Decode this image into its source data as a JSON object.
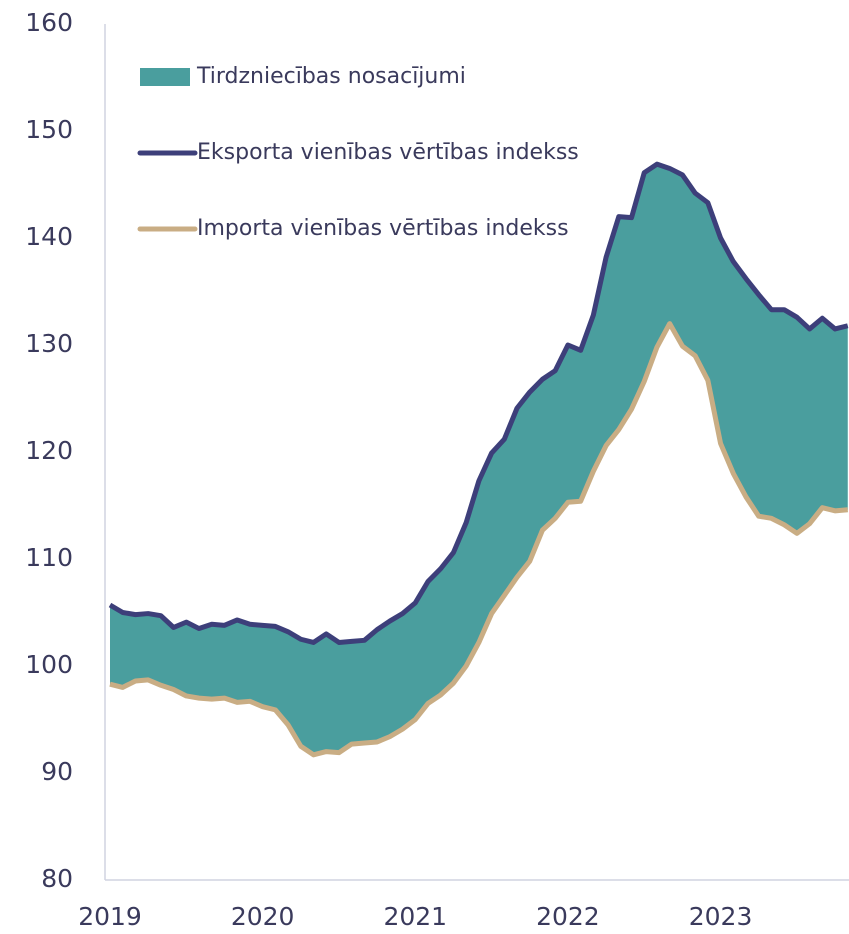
{
  "chart_data": {
    "type": "area-band",
    "categories": [
      "2019",
      null,
      null,
      null,
      null,
      null,
      null,
      null,
      null,
      null,
      null,
      null,
      "2020",
      null,
      null,
      null,
      null,
      null,
      null,
      null,
      null,
      null,
      null,
      null,
      "2021",
      null,
      null,
      null,
      null,
      null,
      null,
      null,
      null,
      null,
      null,
      null,
      "2022",
      null,
      null,
      null,
      null,
      null,
      null,
      null,
      null,
      null,
      null,
      null,
      "2023",
      null,
      null,
      null,
      null,
      null,
      null,
      null,
      null,
      null,
      null
    ],
    "area": {
      "name": "Tirdzniecības nosacījumi",
      "color": "#4a9e9e"
    },
    "series": [
      {
        "name": "Eksporta vienības vērtības indekss",
        "color": "#3d3f7a",
        "values": [
          105.7,
          105.0,
          104.8,
          104.9,
          104.7,
          103.6,
          104.1,
          103.5,
          103.9,
          103.8,
          104.3,
          103.9,
          103.8,
          103.7,
          103.2,
          102.5,
          102.2,
          103.0,
          102.2,
          102.3,
          102.4,
          103.4,
          104.2,
          104.9,
          105.9,
          107.9,
          109.1,
          110.6,
          113.4,
          117.3,
          119.9,
          121.2,
          124.1,
          125.6,
          126.8,
          127.6,
          130.0,
          129.5,
          132.8,
          138.2,
          142.0,
          141.9,
          146.1,
          146.9,
          146.5,
          145.9,
          144.2,
          143.3,
          140.0,
          137.8,
          136.2,
          134.7,
          133.3,
          133.3,
          132.6,
          131.5,
          132.5,
          131.5,
          131.8
        ]
      },
      {
        "name": "Importa vienības vērtības indekss",
        "color": "#c9ad84",
        "values": [
          98.3,
          98.0,
          98.6,
          98.7,
          98.2,
          97.8,
          97.2,
          97.0,
          96.9,
          97.0,
          96.6,
          96.7,
          96.2,
          95.9,
          94.5,
          92.5,
          91.7,
          92.0,
          91.9,
          92.7,
          92.8,
          92.9,
          93.4,
          94.1,
          95.0,
          96.5,
          97.3,
          98.4,
          100.0,
          102.2,
          104.9,
          106.6,
          108.3,
          109.8,
          112.7,
          113.8,
          115.3,
          115.4,
          118.2,
          120.6,
          122.1,
          124.0,
          126.6,
          129.8,
          132.0,
          129.9,
          129.0,
          126.7,
          120.8,
          118.0,
          115.8,
          114.0,
          113.8,
          113.2,
          112.4,
          113.3,
          114.8,
          114.5,
          114.6
        ]
      }
    ],
    "ylim": [
      80,
      160
    ],
    "yticks": [
      80,
      90,
      100,
      110,
      120,
      130,
      140,
      150,
      160
    ],
    "grid": false,
    "legend": "upper-left"
  }
}
